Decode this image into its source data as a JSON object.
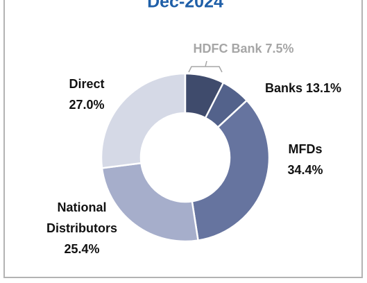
{
  "chart_data": {
    "type": "donut",
    "title": "Dec-2024",
    "categories": [
      "Banks",
      "MFDs",
      "National Distributors",
      "Direct"
    ],
    "values": [
      13.1,
      34.4,
      25.4,
      27.0
    ],
    "value_labels": [
      "13.1%",
      "34.4%",
      "25.4%",
      "27.0%"
    ],
    "colors": [
      "#53628b",
      "#66749f",
      "#a6aecb",
      "#d5d9e6"
    ],
    "sub_segment": {
      "name": "HDFC Bank",
      "value": 7.5,
      "value_label": "7.5%",
      "color": "#3f4b6c"
    }
  }
}
